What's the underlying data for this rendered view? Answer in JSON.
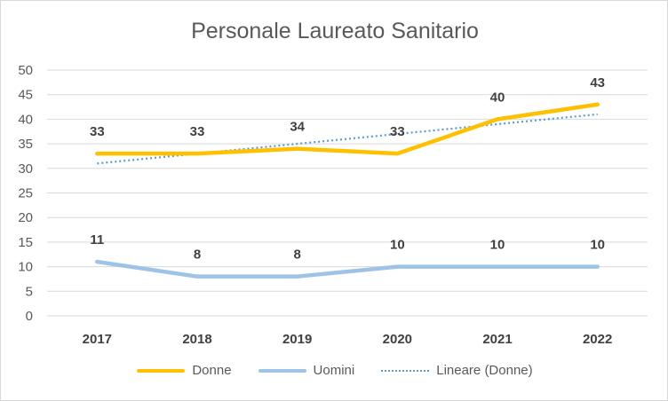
{
  "chart_data": {
    "type": "line",
    "title": "Personale Laureato Sanitario",
    "categories": [
      "2017",
      "2018",
      "2019",
      "2020",
      "2021",
      "2022"
    ],
    "ylim": [
      0,
      50
    ],
    "yticks": [
      0,
      5,
      10,
      15,
      20,
      25,
      30,
      35,
      40,
      45,
      50
    ],
    "grid": true,
    "legend_position": "bottom",
    "series": [
      {
        "name": "Donne",
        "values": [
          33,
          33,
          34,
          33,
          40,
          43
        ],
        "color": "#ffc000",
        "style": "solid",
        "data_labels": true
      },
      {
        "name": "Uomini",
        "values": [
          11,
          8,
          8,
          10,
          10,
          10
        ],
        "color": "#9dc3e6",
        "style": "solid",
        "data_labels": true
      },
      {
        "name": "Lineare (Donne)",
        "values": [
          31,
          33,
          35,
          37,
          39,
          41
        ],
        "color": "#5b9bd5",
        "style": "dotted",
        "data_labels": false
      }
    ]
  }
}
